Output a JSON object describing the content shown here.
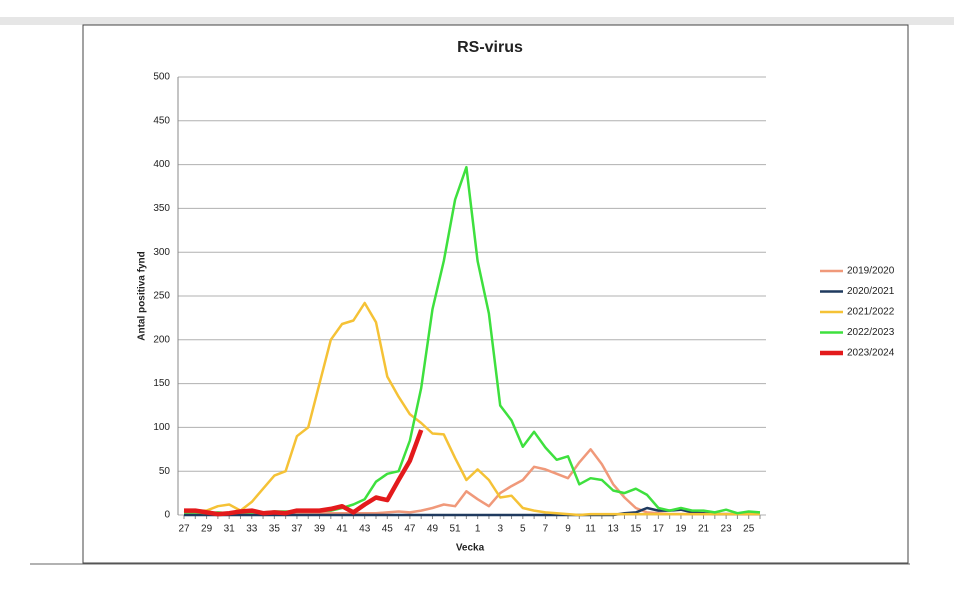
{
  "chart_data": {
    "type": "line",
    "title": "RS-virus",
    "x_label": "Vecka",
    "y_label": "Antal positiva fynd",
    "categories": [
      "27",
      null,
      "29",
      null,
      "31",
      null,
      "33",
      null,
      "35",
      null,
      "37",
      null,
      "39",
      null,
      "41",
      null,
      "43",
      null,
      "45",
      null,
      "47",
      null,
      "49",
      null,
      "51",
      null,
      "1",
      null,
      "3",
      null,
      "5",
      null,
      "7",
      null,
      "9",
      null,
      "11",
      null,
      "13",
      null,
      "15",
      null,
      "17",
      null,
      "19",
      null,
      "21",
      null,
      "23",
      null,
      "25",
      null
    ],
    "ylim": [
      0,
      500
    ],
    "yticks": [
      0,
      50,
      100,
      150,
      200,
      250,
      300,
      350,
      400,
      450,
      500
    ],
    "grid": true,
    "legend": "right",
    "series": [
      {
        "name": "2019/2020",
        "color": "#f0997a",
        "width": 2.5,
        "values": [
          2,
          2,
          2,
          2,
          2,
          2,
          2,
          2,
          2,
          2,
          2,
          2,
          2,
          2,
          2,
          2,
          2,
          2,
          3,
          4,
          3,
          5,
          8,
          12,
          10,
          27,
          18,
          10,
          25,
          33,
          40,
          55,
          52,
          47,
          42,
          60,
          75,
          58,
          35,
          20,
          8,
          3,
          2,
          1,
          1,
          1,
          1,
          1,
          1,
          1,
          1,
          1
        ]
      },
      {
        "name": "2020/2021",
        "color": "#1f3a5f",
        "width": 2.5,
        "values": [
          0,
          0,
          0,
          0,
          0,
          0,
          0,
          0,
          0,
          0,
          0,
          0,
          0,
          0,
          0,
          0,
          0,
          0,
          0,
          0,
          0,
          0,
          0,
          0,
          0,
          0,
          0,
          0,
          0,
          0,
          0,
          0,
          0,
          0,
          0,
          0,
          0,
          0,
          0,
          2,
          3,
          8,
          5,
          5,
          6,
          3,
          2,
          1,
          1,
          1,
          1,
          1
        ]
      },
      {
        "name": "2021/2022",
        "color": "#f5c236",
        "width": 2.5,
        "values": [
          3,
          5,
          5,
          10,
          12,
          5,
          15,
          30,
          45,
          50,
          90,
          100,
          150,
          200,
          218,
          222,
          242,
          220,
          158,
          135,
          115,
          105,
          93,
          92,
          65,
          40,
          52,
          40,
          20,
          22,
          8,
          5,
          3,
          2,
          1,
          0,
          1,
          1,
          1,
          1,
          1,
          1,
          1,
          1,
          1,
          1,
          1,
          1,
          1,
          1,
          1,
          1
        ]
      },
      {
        "name": "2022/2023",
        "color": "#3ee03e",
        "width": 2.5,
        "values": [
          3,
          3,
          2,
          3,
          2,
          3,
          3,
          3,
          4,
          4,
          4,
          5,
          5,
          5,
          8,
          12,
          18,
          38,
          47,
          50,
          85,
          145,
          235,
          290,
          360,
          397,
          290,
          230,
          125,
          108,
          78,
          95,
          77,
          63,
          67,
          35,
          42,
          40,
          28,
          25,
          30,
          23,
          8,
          5,
          8,
          5,
          5,
          3,
          6,
          2,
          4,
          3
        ]
      },
      {
        "name": "2023/2024",
        "color": "#e31a1c",
        "width": 4.5,
        "values": [
          5,
          5,
          3,
          1,
          2,
          4,
          5,
          2,
          3,
          2,
          5,
          5,
          5,
          7,
          10,
          3,
          12,
          20,
          17,
          40,
          62,
          97,
          null,
          null,
          null,
          null,
          null,
          null,
          null,
          null,
          null,
          null,
          null,
          null,
          null,
          null,
          null,
          null,
          null,
          null,
          null,
          null,
          null,
          null,
          null,
          null,
          null,
          null,
          null,
          null,
          null,
          null
        ]
      }
    ]
  }
}
